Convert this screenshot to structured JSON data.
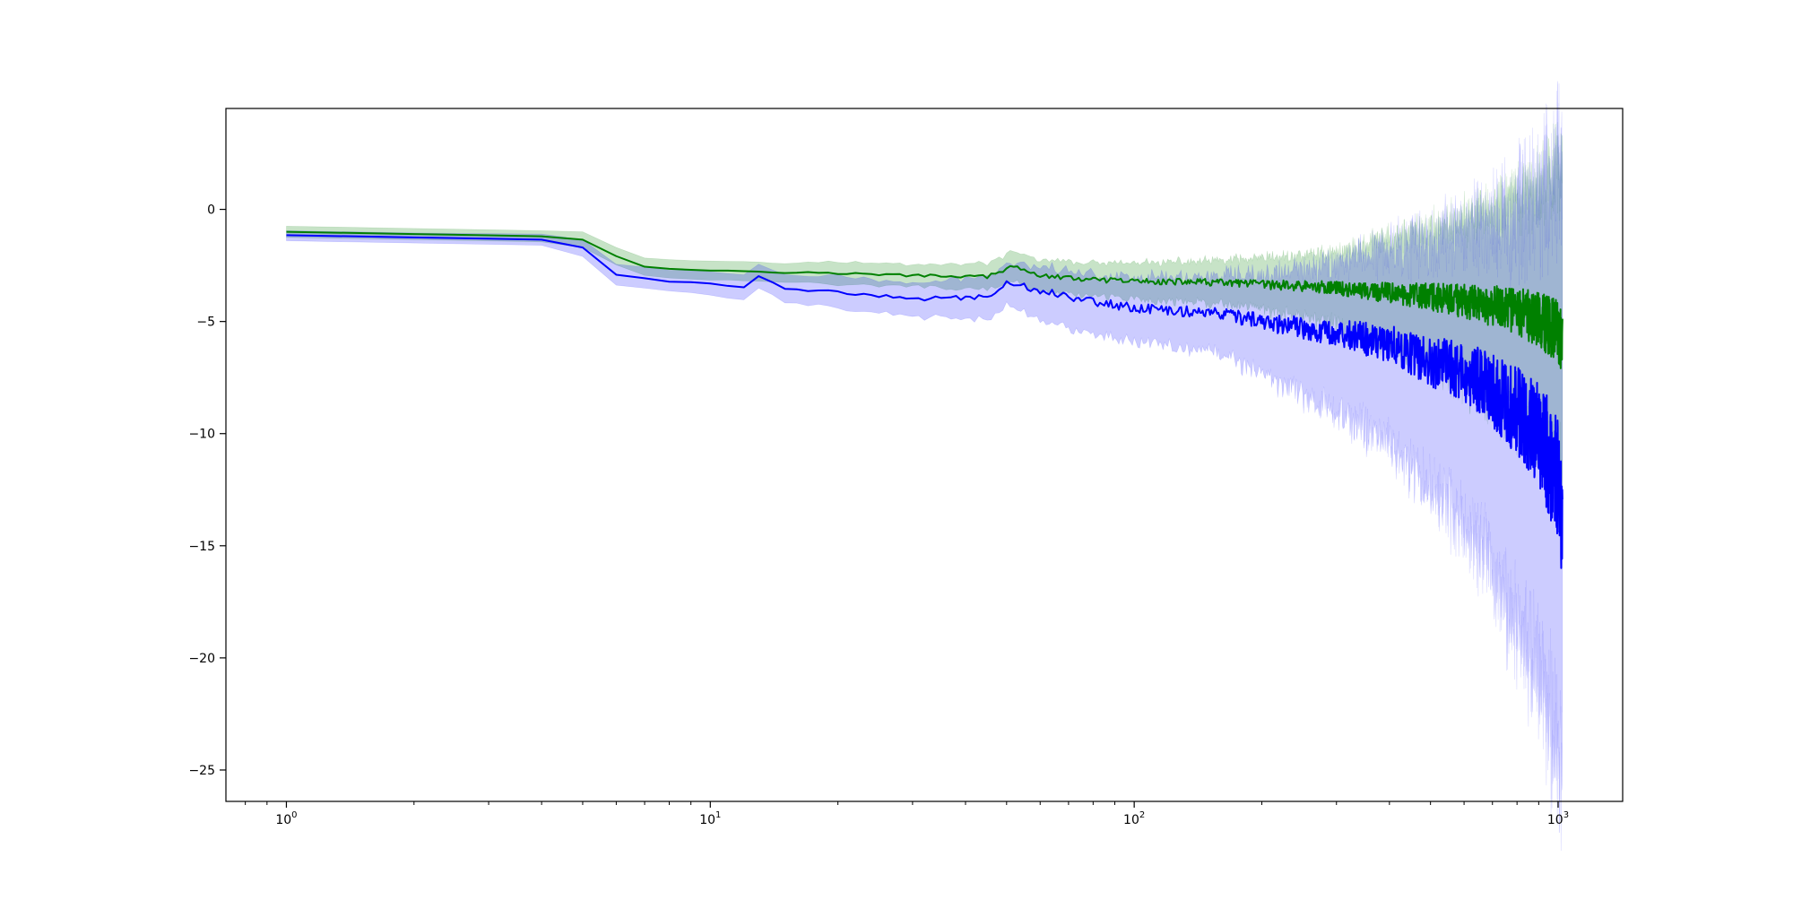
{
  "chart_data": {
    "type": "line",
    "title": "",
    "xlabel": "",
    "ylabel": "",
    "xscale": "log",
    "xlim": [
      0.72,
      1420
    ],
    "ylim": [
      -26.4,
      4.5
    ],
    "grid": false,
    "legend": "none",
    "x_ticks": [
      {
        "value": 1,
        "base": "10",
        "exp": "0"
      },
      {
        "value": 10,
        "base": "10",
        "exp": "1"
      },
      {
        "value": 100,
        "base": "10",
        "exp": "2"
      },
      {
        "value": 1000,
        "base": "10",
        "exp": "3"
      }
    ],
    "y_ticks": [
      {
        "value": 0,
        "label": "0"
      },
      {
        "value": -5,
        "label": "−5"
      },
      {
        "value": -10,
        "label": "−10"
      },
      {
        "value": -15,
        "label": "−15"
      },
      {
        "value": -20,
        "label": "−20"
      },
      {
        "value": -25,
        "label": "−25"
      }
    ],
    "series": [
      {
        "color": "#008000",
        "band_color": "#008000",
        "band_opacity": 0.22,
        "points": [
          [
            1,
            -1.0,
            -0.75,
            -1.25
          ],
          [
            2,
            -1.1,
            -0.85,
            -1.35
          ],
          [
            4,
            -1.2,
            -0.95,
            -1.45
          ],
          [
            5,
            -1.35,
            -1.0,
            -1.7
          ],
          [
            6,
            -2.1,
            -1.7,
            -2.5
          ],
          [
            7,
            -2.55,
            -2.15,
            -2.95
          ],
          [
            9,
            -2.7,
            -2.3,
            -3.1
          ],
          [
            12,
            -2.75,
            -2.3,
            -3.2
          ],
          [
            15,
            -2.8,
            -2.35,
            -3.25
          ],
          [
            20,
            -2.85,
            -2.35,
            -3.35
          ],
          [
            30,
            -2.95,
            -2.45,
            -3.45
          ],
          [
            45,
            -3.0,
            -2.4,
            -3.6
          ],
          [
            52,
            -2.55,
            -1.9,
            -3.2
          ],
          [
            60,
            -2.95,
            -2.25,
            -3.65
          ],
          [
            80,
            -3.15,
            -2.4,
            -3.9
          ],
          [
            100,
            -3.2,
            -2.4,
            -4.0
          ],
          [
            150,
            -3.25,
            -2.3,
            -4.2
          ],
          [
            200,
            -3.35,
            -2.2,
            -4.5
          ],
          [
            300,
            -3.5,
            -1.9,
            -5.1
          ],
          [
            400,
            -3.75,
            -1.3,
            -6.2
          ],
          [
            500,
            -3.9,
            -0.9,
            -6.9
          ],
          [
            600,
            -4.1,
            -0.5,
            -7.7
          ],
          [
            700,
            -4.3,
            0.0,
            -8.6
          ],
          [
            800,
            -4.5,
            0.5,
            -9.5
          ],
          [
            900,
            -4.9,
            1.1,
            -10.5
          ],
          [
            1000,
            -5.4,
            1.8,
            -11.5
          ],
          [
            1024,
            -5.7,
            2.4,
            -12.0
          ]
        ]
      },
      {
        "color": "#0000ff",
        "band_color": "#0000ff",
        "band_opacity": 0.2,
        "points": [
          [
            1,
            -1.15,
            -0.95,
            -1.4
          ],
          [
            2,
            -1.25,
            -1.05,
            -1.5
          ],
          [
            4,
            -1.35,
            -1.1,
            -1.6
          ],
          [
            5,
            -1.7,
            -1.35,
            -2.1
          ],
          [
            6,
            -2.9,
            -2.45,
            -3.35
          ],
          [
            8,
            -3.2,
            -2.7,
            -3.6
          ],
          [
            10,
            -3.3,
            -2.8,
            -3.8
          ],
          [
            12,
            -3.45,
            -2.9,
            -4.0
          ],
          [
            13,
            -3.0,
            -2.5,
            -3.5
          ],
          [
            15,
            -3.5,
            -2.9,
            -4.1
          ],
          [
            20,
            -3.7,
            -3.0,
            -4.4
          ],
          [
            30,
            -4.0,
            -3.3,
            -4.8
          ],
          [
            45,
            -3.9,
            -3.0,
            -4.9
          ],
          [
            50,
            -3.25,
            -2.4,
            -4.2
          ],
          [
            60,
            -3.6,
            -2.5,
            -4.9
          ],
          [
            80,
            -4.1,
            -2.9,
            -5.6
          ],
          [
            100,
            -4.4,
            -3.0,
            -5.9
          ],
          [
            150,
            -4.6,
            -3.0,
            -6.3
          ],
          [
            200,
            -5.0,
            -3.0,
            -7.3
          ],
          [
            300,
            -5.5,
            -2.4,
            -9.0
          ],
          [
            400,
            -6.0,
            -1.7,
            -10.5
          ],
          [
            500,
            -6.8,
            -1.5,
            -12.5
          ],
          [
            600,
            -7.2,
            -1.0,
            -13.8
          ],
          [
            700,
            -8.1,
            -0.6,
            -16.0
          ],
          [
            800,
            -9.0,
            -0.2,
            -18.5
          ],
          [
            900,
            -10.0,
            0.5,
            -20.5
          ],
          [
            1000,
            -12.0,
            1.5,
            -24.0
          ],
          [
            1024,
            -14.0,
            2.2,
            -24.8
          ]
        ]
      }
    ]
  }
}
